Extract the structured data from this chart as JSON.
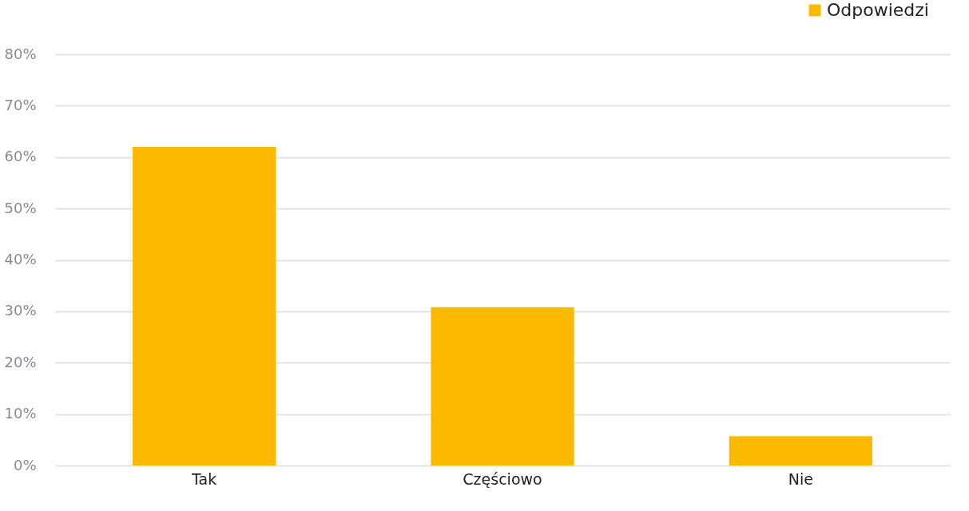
{
  "chart_data": {
    "type": "bar",
    "categories": [
      "Tak",
      "Częściowo",
      "Nie"
    ],
    "series": [
      {
        "name": "Odpowiedzi",
        "color": "#fbb900",
        "values": [
          62,
          30.8,
          5.7
        ]
      }
    ],
    "ylim": [
      0,
      80
    ],
    "yticks": [
      {
        "value": 0,
        "label": "0%"
      },
      {
        "value": 10,
        "label": "10%"
      },
      {
        "value": 20,
        "label": "20%"
      },
      {
        "value": 30,
        "label": "30%"
      },
      {
        "value": 40,
        "label": "40%"
      },
      {
        "value": 50,
        "label": "50%"
      },
      {
        "value": 60,
        "label": "60%"
      },
      {
        "value": 70,
        "label": "70%"
      },
      {
        "value": 80,
        "label": "80%"
      }
    ],
    "grid": true,
    "legend": "top right"
  }
}
